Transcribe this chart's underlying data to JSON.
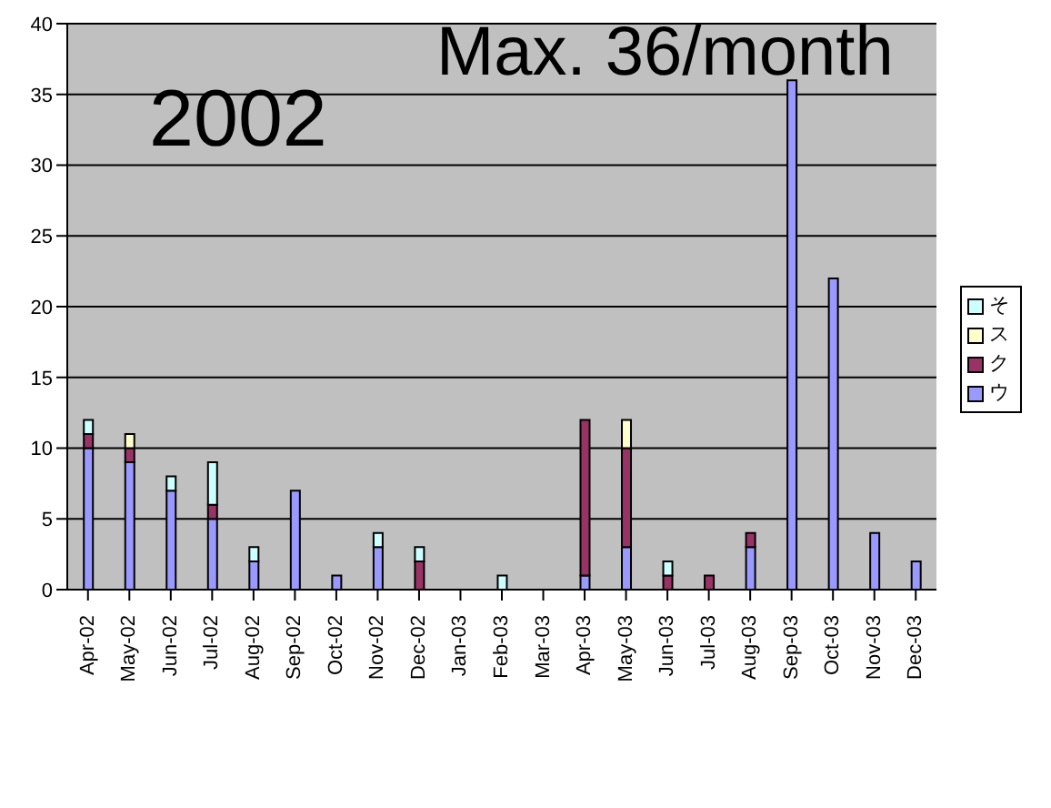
{
  "chart_data": {
    "type": "bar",
    "stacked": true,
    "categories": [
      "Apr-02",
      "May-02",
      "Jun-02",
      "Jul-02",
      "Aug-02",
      "Sep-02",
      "Oct-02",
      "Nov-02",
      "Dec-02",
      "Jan-03",
      "Feb-03",
      "Mar-03",
      "Apr-03",
      "May-03",
      "Jun-03",
      "Jul-03",
      "Aug-03",
      "Sep-03",
      "Oct-03",
      "Nov-03",
      "Dec-03"
    ],
    "series": [
      {
        "name": "ウ",
        "color": "#9999ff",
        "values": [
          10,
          9,
          7,
          5,
          2,
          7,
          1,
          3,
          0,
          0,
          0,
          0,
          1,
          3,
          0,
          0,
          3,
          36,
          22,
          4,
          2
        ]
      },
      {
        "name": "ク",
        "color": "#993366",
        "values": [
          1,
          1,
          0,
          1,
          0,
          0,
          0,
          0,
          2,
          0,
          0,
          0,
          11,
          7,
          1,
          1,
          1,
          0,
          0,
          0,
          0
        ]
      },
      {
        "name": "ス",
        "color": "#ffffcc",
        "values": [
          0,
          1,
          0,
          0,
          0,
          0,
          0,
          0,
          0,
          0,
          0,
          0,
          0,
          2,
          0,
          0,
          0,
          0,
          0,
          0,
          0
        ]
      },
      {
        "name": "そ",
        "color": "#ccffff",
        "values": [
          1,
          0,
          1,
          3,
          1,
          0,
          0,
          1,
          1,
          0,
          1,
          0,
          0,
          0,
          1,
          0,
          0,
          0,
          0,
          0,
          0
        ]
      }
    ],
    "ylim": [
      0,
      40
    ],
    "yticks": [
      0,
      5,
      10,
      15,
      20,
      25,
      30,
      35,
      40
    ],
    "grid": "y",
    "legend": "right",
    "annotations": [
      "2002",
      "Max. 36/month"
    ]
  }
}
